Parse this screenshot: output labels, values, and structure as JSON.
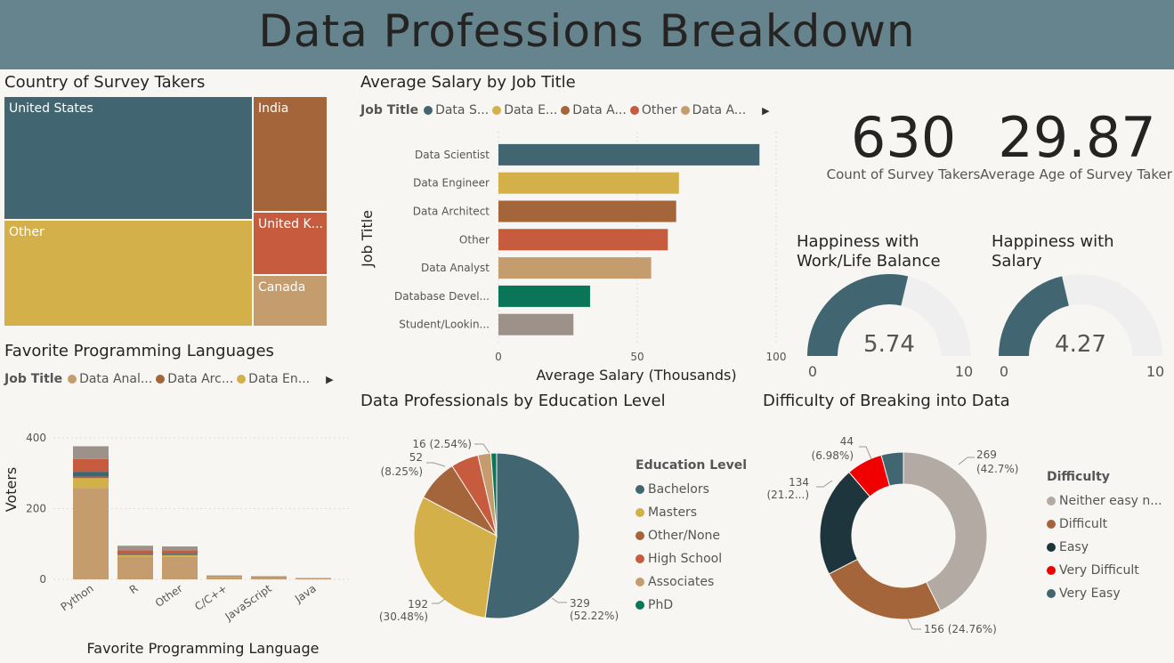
{
  "header": {
    "title": "Data Professions Breakdown"
  },
  "colors": {
    "slate": "#416671",
    "gold": "#d4b04b",
    "brown": "#a5653a",
    "rust": "#c65b3e",
    "tan": "#c59c6d",
    "green": "#0a7557",
    "taupe": "#9c928a",
    "dark": "#1f353d",
    "red": "#f00000",
    "greige": "#b2aaa3",
    "track": "#efefef"
  },
  "treemap": {
    "title": "Country of Survey Takers",
    "cells": [
      {
        "label": "United States",
        "color": "#416671"
      },
      {
        "label": "Other",
        "color": "#d4b04b"
      },
      {
        "label": "India",
        "color": "#a5653a"
      },
      {
        "label": "United K...",
        "color": "#c65b3e"
      },
      {
        "label": "Canada",
        "color": "#c59c6d"
      }
    ]
  },
  "salary": {
    "title": "Average Salary by Job Title",
    "legend_title": "Job Title",
    "legend": [
      {
        "label": "Data S...",
        "color": "#416671"
      },
      {
        "label": "Data E...",
        "color": "#d4b04b"
      },
      {
        "label": "Data A...",
        "color": "#a5653a"
      },
      {
        "label": "Other",
        "color": "#c65b3e"
      },
      {
        "label": "Data A...",
        "color": "#c59c6d"
      }
    ]
  },
  "kpis": [
    {
      "value": "630",
      "label": "Count of Survey Takers"
    },
    {
      "value": "29.87",
      "label": "Average Age of Survey Taker"
    }
  ],
  "gauges": [
    {
      "title_line1": "Happiness with",
      "title_line2": "Work/Life Balance",
      "value": 5.74,
      "value_label": "5.74",
      "min": 0,
      "max": 10,
      "min_label": "0",
      "max_label": "10"
    },
    {
      "title_line1": "Happiness with",
      "title_line2": "Salary",
      "value": 4.27,
      "value_label": "4.27",
      "min": 0,
      "max": 10,
      "min_label": "0",
      "max_label": "10"
    }
  ],
  "languages": {
    "title": "Favorite Programming Languages",
    "legend_title": "Job Title",
    "legend": [
      {
        "label": "Data Anal...",
        "color": "#c59c6d"
      },
      {
        "label": "Data Arc...",
        "color": "#a5653a"
      },
      {
        "label": "Data En...",
        "color": "#d4b04b"
      }
    ]
  },
  "education": {
    "title": "Data Professionals by Education Level",
    "legend_title": "Education Level",
    "labels": [
      {
        "line1": "329",
        "line2": "(52.22%)"
      },
      {
        "line1": "192",
        "line2": "(30.48%)"
      },
      {
        "line1": "52",
        "line2": "(8.25%)"
      },
      {
        "line1": "16 (2.54%)",
        "line2": ""
      }
    ]
  },
  "difficulty": {
    "title": "Difficulty of Breaking into Data",
    "legend_title": "Difficulty",
    "labels": [
      {
        "line1": "269",
        "line2": "(42.7%)"
      },
      {
        "line1": "156 (24.76%)",
        "line2": ""
      },
      {
        "line1": "134",
        "line2": "(21.2...)"
      },
      {
        "line1": "44",
        "line2": "(6.98%)"
      }
    ]
  },
  "chart_data": [
    {
      "type": "bar",
      "orientation": "horizontal",
      "categories": [
        "Data Scientist",
        "Data Engineer",
        "Data Architect",
        "Other",
        "Data Analyst",
        "Database Devel...",
        "Student/Lookin..."
      ],
      "values": [
        94,
        65,
        64,
        61,
        55,
        33,
        27
      ],
      "colors": [
        "#416671",
        "#d4b04b",
        "#a5653a",
        "#c65b3e",
        "#c59c6d",
        "#0a7557",
        "#9c928a"
      ],
      "xlabel": "Average Salary (Thousands)",
      "ylabel": "Job Title",
      "xlim": [
        0,
        100
      ],
      "xticks": [
        "0",
        "50",
        "100"
      ],
      "grid": true
    },
    {
      "type": "bar",
      "stacked": true,
      "categories": [
        "Python",
        "R",
        "Other",
        "C/C++",
        "JavaScript",
        "Java"
      ],
      "series": [
        {
          "color": "#c59c6d",
          "values": [
            258,
            65,
            63,
            6,
            5,
            2
          ]
        },
        {
          "color": "#d4b04b",
          "values": [
            28,
            3,
            5,
            1,
            1,
            0
          ]
        },
        {
          "color": "#a5653a",
          "values": [
            4,
            2,
            3,
            1,
            0,
            0
          ]
        },
        {
          "color": "#416671",
          "values": [
            14,
            2,
            3,
            0,
            1,
            0
          ]
        },
        {
          "color": "#c65b3e",
          "values": [
            36,
            10,
            8,
            1,
            1,
            1
          ]
        },
        {
          "color": "#9c928a",
          "values": [
            36,
            13,
            11,
            2,
            1,
            1
          ]
        }
      ],
      "xlabel": "Favorite Programming Language",
      "ylabel": "Voters",
      "ylim": [
        0,
        430
      ],
      "yticks": [
        0,
        200,
        400
      ],
      "grid": true
    },
    {
      "type": "pie",
      "categories": [
        "Bachelors",
        "Masters",
        "Other/None",
        "High School",
        "Associates",
        "PhD"
      ],
      "values": [
        329,
        192,
        52,
        34,
        16,
        7
      ],
      "colors": [
        "#416671",
        "#d4b04b",
        "#a5653a",
        "#c65b3e",
        "#c59c6d",
        "#0a7557"
      ],
      "legend": "right"
    },
    {
      "type": "pie",
      "donut": true,
      "categories": [
        "Neither easy n...",
        "Difficult",
        "Easy",
        "Very Difficult",
        "Very Easy"
      ],
      "values": [
        269,
        156,
        134,
        44,
        27
      ],
      "colors": [
        "#b2aaa3",
        "#a5653a",
        "#1f353d",
        "#f00000",
        "#416671"
      ],
      "legend": "right"
    }
  ]
}
